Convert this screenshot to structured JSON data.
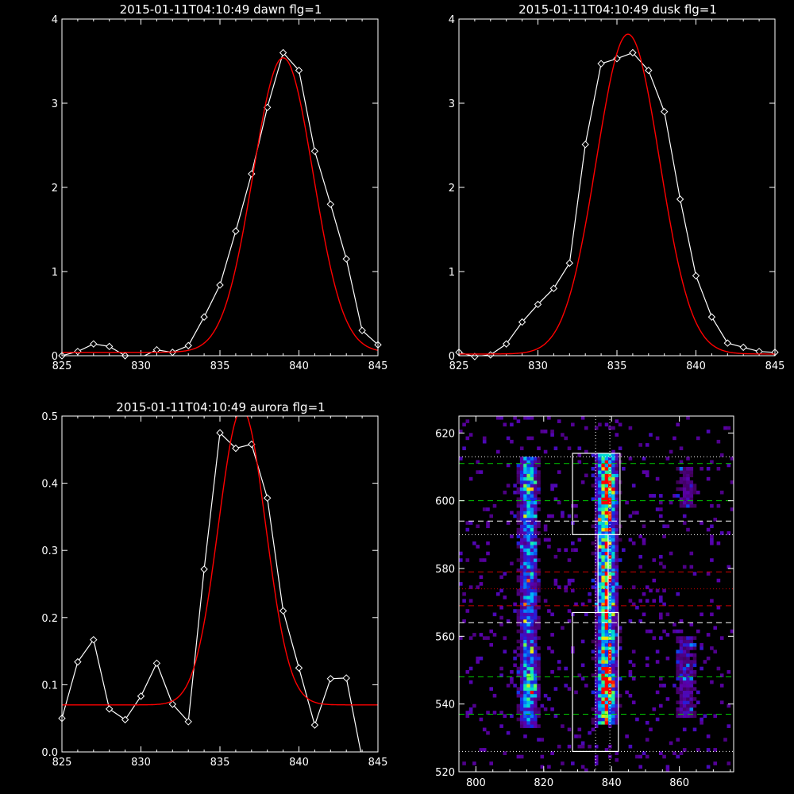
{
  "chart_data": [
    {
      "id": "dawn",
      "type": "line",
      "title": "2015-01-11T04:10:49 dawn flg=1",
      "xlim": [
        825,
        845
      ],
      "ylim": [
        0,
        4
      ],
      "xticks": [
        "825",
        "830",
        "835",
        "840",
        "845"
      ],
      "yticks": [
        "0",
        "1",
        "2",
        "3",
        "4"
      ],
      "series": [
        {
          "color": "#ffffff",
          "marker": "diamond",
          "x": [
            825,
            826,
            827,
            828,
            829,
            830,
            831,
            832,
            833,
            834,
            835,
            836,
            837,
            838,
            839,
            840,
            841,
            842,
            843,
            844,
            845
          ],
          "y": [
            0.0,
            0.05,
            0.14,
            0.11,
            0.0,
            -0.02,
            0.07,
            0.04,
            0.12,
            0.46,
            0.84,
            1.48,
            2.16,
            2.95,
            3.6,
            3.39,
            2.43,
            1.8,
            1.15,
            0.3,
            0.13
          ]
        },
        {
          "color": "#ff0000",
          "model": "gaussian",
          "params": {
            "amp": 3.5,
            "mu": 839.0,
            "sigma": 1.9,
            "base": 0.04
          }
        }
      ]
    },
    {
      "id": "dusk",
      "type": "line",
      "title": "2015-01-11T04:10:49 dusk flg=1",
      "xlim": [
        825,
        845
      ],
      "ylim": [
        0,
        4
      ],
      "xticks": [
        "825",
        "830",
        "835",
        "840",
        "845"
      ],
      "yticks": [
        "0",
        "1",
        "2",
        "3",
        "4"
      ],
      "series": [
        {
          "color": "#ffffff",
          "marker": "diamond",
          "x": [
            825,
            826,
            827,
            828,
            829,
            830,
            831,
            832,
            833,
            834,
            835,
            836,
            837,
            838,
            839,
            840,
            841,
            842,
            843,
            844,
            845
          ],
          "y": [
            0.04,
            -0.01,
            0.01,
            0.14,
            0.4,
            0.61,
            0.8,
            1.1,
            2.51,
            3.47,
            3.53,
            3.6,
            3.39,
            2.9,
            1.86,
            0.95,
            0.46,
            0.15,
            0.1,
            0.05,
            0.04
          ],
          "clip": true
        },
        {
          "color": "#ff0000",
          "model": "gaussian",
          "params": {
            "amp": 3.8,
            "mu": 835.7,
            "sigma": 2.0,
            "base": 0.02
          }
        }
      ]
    },
    {
      "id": "aurora",
      "type": "line",
      "title": "2015-01-11T04:10:49 aurora flg=1",
      "xlim": [
        825,
        845
      ],
      "ylim": [
        0,
        0.5
      ],
      "xticks": [
        "825",
        "830",
        "835",
        "840",
        "845"
      ],
      "yticks": [
        "0.0",
        "0.1",
        "0.2",
        "0.3",
        "0.4",
        "0.5"
      ],
      "series": [
        {
          "color": "#ffffff",
          "marker": "diamond",
          "x": [
            825,
            826,
            827,
            828,
            829,
            830,
            831,
            832,
            833,
            834,
            835,
            836,
            837,
            838,
            839,
            840,
            841,
            842,
            843,
            844
          ],
          "y": [
            0.05,
            0.134,
            0.167,
            0.064,
            0.048,
            0.083,
            0.132,
            0.071,
            0.045,
            0.272,
            0.475,
            0.452,
            0.458,
            0.378,
            0.21,
            0.125,
            0.04,
            0.109,
            0.11,
            -0.01
          ]
        },
        {
          "color": "#ff0000",
          "model": "gaussian",
          "params": {
            "amp": 0.44,
            "mu": 836.4,
            "sigma": 1.5,
            "base": 0.07
          }
        }
      ]
    },
    {
      "id": "image",
      "type": "heatmap",
      "xlim": [
        795,
        876
      ],
      "ylim": [
        520,
        625
      ],
      "xticks": [
        "800",
        "820",
        "840",
        "860"
      ],
      "yticks": [
        "520",
        "540",
        "560",
        "580",
        "600",
        "620"
      ],
      "bands": [
        {
          "x": 815.5,
          "width": 6,
          "ylo": 533,
          "yhi": 613,
          "peak": 0.6
        },
        {
          "x": 838.5,
          "width": 6,
          "ylo": 534,
          "yhi": 614,
          "peak": 1.0
        },
        {
          "x": 862,
          "width": 7,
          "ylo": 536,
          "yhi": 560,
          "peak": 0.35
        },
        {
          "x": 862,
          "width": 6,
          "ylo": 598,
          "yhi": 610,
          "peak": 0.3
        }
      ],
      "hotspots": [
        {
          "x": 839,
          "y": 604,
          "v": 0.95
        },
        {
          "x": 839,
          "y": 545,
          "v": 0.9
        },
        {
          "x": 815,
          "y": 605,
          "v": 0.55
        },
        {
          "x": 816,
          "y": 545,
          "v": 0.45
        }
      ],
      "hlines": [
        {
          "y": 613,
          "style": "dotted",
          "color": "#ffffff"
        },
        {
          "y": 611,
          "style": "dashed",
          "color": "#00cc00"
        },
        {
          "y": 600,
          "style": "dashed",
          "color": "#00cc00"
        },
        {
          "y": 594,
          "style": "dashed",
          "color": "#ffffff"
        },
        {
          "y": 590,
          "style": "dotted",
          "color": "#ffffff"
        },
        {
          "y": 579,
          "style": "dashed",
          "color": "#cc0000"
        },
        {
          "y": 574,
          "style": "dotted",
          "color": "#cc0000"
        },
        {
          "y": 569,
          "style": "dashed",
          "color": "#cc0000"
        },
        {
          "y": 564,
          "style": "dashed",
          "color": "#ffffff"
        },
        {
          "y": 548,
          "style": "dashed",
          "color": "#00cc00"
        },
        {
          "y": 537,
          "style": "dashed",
          "color": "#00cc00"
        },
        {
          "y": 526,
          "style": "dotted",
          "color": "#ffffff"
        }
      ],
      "vlines": [
        {
          "x": 835.3,
          "style": "dotted",
          "color": "#ffffff"
        },
        {
          "x": 839.5,
          "style": "dotted",
          "color": "#ffffff"
        }
      ],
      "boxes": [
        {
          "x0": 828.5,
          "x1": 842.5,
          "y0": 590,
          "y1": 614
        },
        {
          "x0": 836,
          "x1": 839,
          "y0": 567,
          "y1": 590
        },
        {
          "x0": 828.5,
          "x1": 842,
          "y0": 526,
          "y1": 567
        }
      ]
    }
  ]
}
